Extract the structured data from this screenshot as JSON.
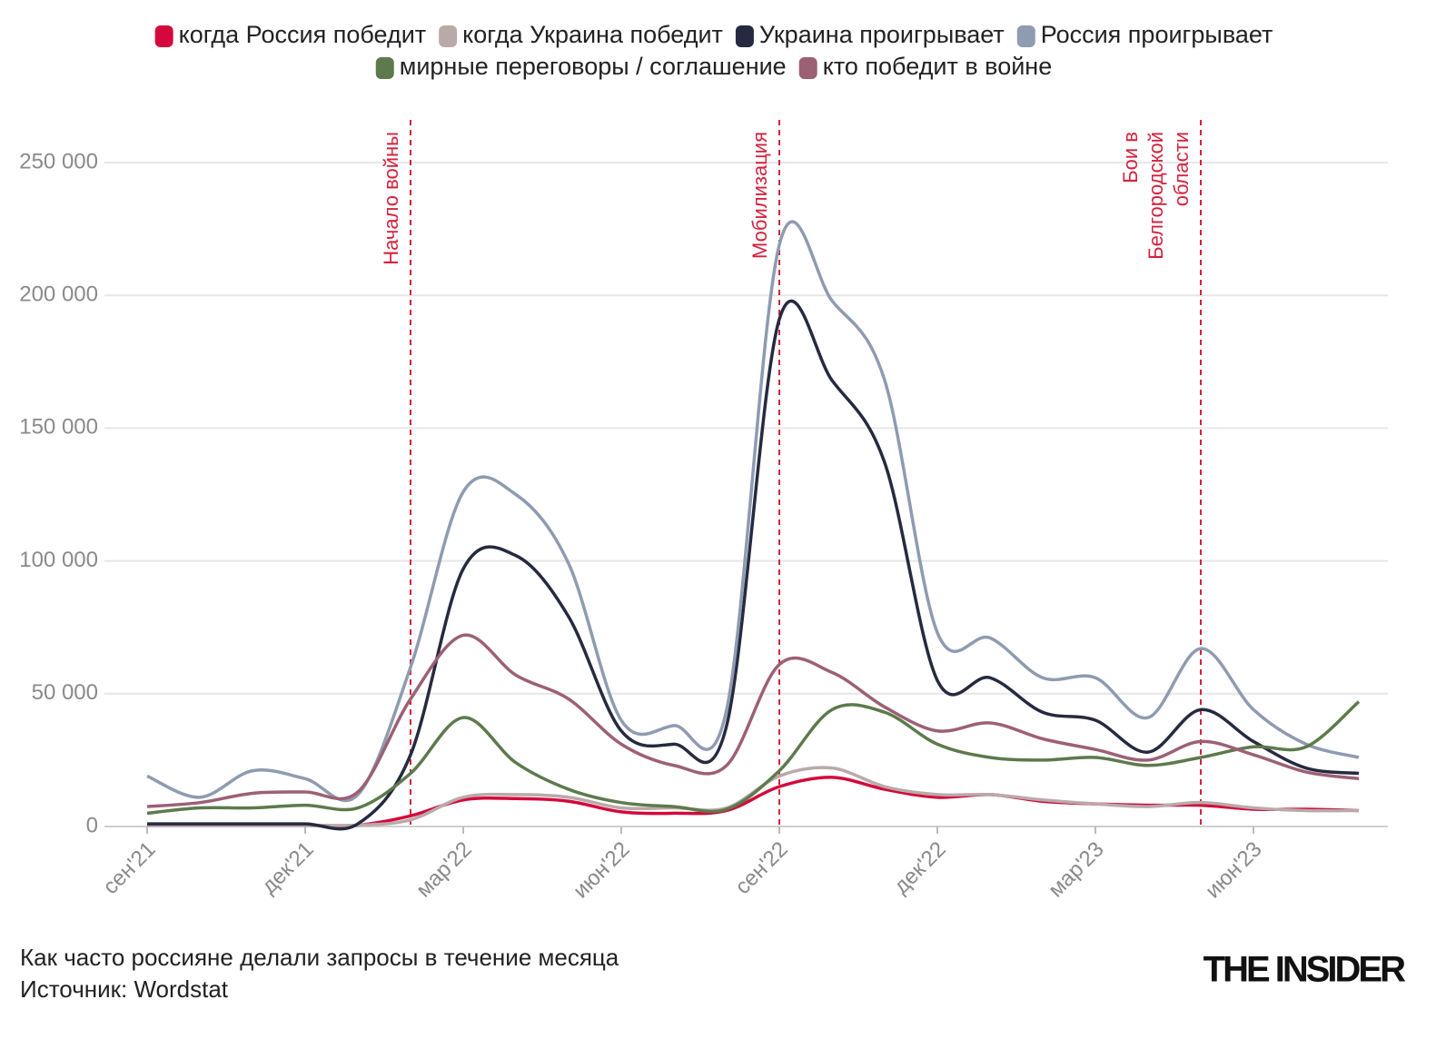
{
  "chart_data": {
    "type": "line",
    "categories": [
      "сен'21",
      null,
      null,
      "дек'21",
      null,
      null,
      "мар'22",
      null,
      null,
      "июн'22",
      null,
      null,
      "сен'22",
      null,
      null,
      "дек'22",
      null,
      null,
      "мар'23",
      null,
      null,
      "июн'23",
      null,
      null
    ],
    "series": [
      {
        "name": "когда Россия победит",
        "color": "#d4083c",
        "values": [
          500,
          500,
          500,
          500,
          500,
          4000,
          10000,
          10500,
          9500,
          5500,
          5000,
          6000,
          15000,
          18500,
          14000,
          11000,
          12000,
          9500,
          8500,
          8000,
          8000,
          6500,
          6500,
          6000
        ]
      },
      {
        "name": "когда Украина победит",
        "color": "#b9aaa9",
        "values": [
          500,
          500,
          500,
          500,
          500,
          2500,
          11000,
          12000,
          11000,
          7000,
          7000,
          7000,
          19000,
          22000,
          15000,
          12000,
          12000,
          10000,
          8500,
          7500,
          9000,
          7000,
          6000,
          6000
        ]
      },
      {
        "name": "Украина проигрывает",
        "color": "#262a40",
        "values": [
          1000,
          1000,
          1000,
          1000,
          1000,
          27000,
          97000,
          102000,
          79000,
          36000,
          31000,
          38000,
          191000,
          168000,
          137000,
          55000,
          56000,
          43000,
          40000,
          28000,
          44000,
          32000,
          22000,
          20000
        ]
      },
      {
        "name": "Россия проигрывает",
        "color": "#8e9bb0",
        "values": [
          19000,
          11000,
          21000,
          18000,
          12000,
          60000,
          126000,
          125000,
          99000,
          40000,
          38000,
          44000,
          219000,
          198000,
          168000,
          73000,
          71000,
          56000,
          56000,
          41000,
          67000,
          44000,
          31000,
          26000
        ]
      },
      {
        "name": "мирные переговоры / соглашение",
        "color": "#5d7a4c",
        "values": [
          5000,
          7000,
          7000,
          8000,
          7000,
          20000,
          41000,
          24000,
          14000,
          9000,
          7500,
          6500,
          21000,
          44000,
          43000,
          31000,
          26000,
          25000,
          26000,
          23000,
          26000,
          30000,
          30000,
          47000
        ]
      },
      {
        "name": "кто победит в войне",
        "color": "#9c6075",
        "values": [
          7500,
          9000,
          12500,
          13000,
          13000,
          48000,
          72000,
          57000,
          48000,
          31000,
          23000,
          23000,
          61000,
          58000,
          45000,
          36000,
          39000,
          33000,
          29000,
          25000,
          32000,
          27000,
          20500,
          18000
        ]
      }
    ],
    "ylim": [
      0,
      265000
    ],
    "yticks": [
      0,
      {
        "value": 50000,
        "label": "50 000"
      },
      {
        "value": 100000,
        "label": "100 000"
      },
      {
        "value": 150000,
        "label": "150 000"
      },
      {
        "value": 200000,
        "label": "200 000"
      },
      {
        "value": 250000,
        "label": "250 000"
      }
    ],
    "grid": true,
    "events": [
      {
        "x": 5,
        "lines": [
          "Начало войны"
        ]
      },
      {
        "x": 12,
        "lines": [
          "Мобилизация"
        ]
      },
      {
        "x": 20,
        "lines": [
          "Бои в",
          "Белгородской",
          "области"
        ]
      }
    ],
    "event_color": "#d4213d",
    "caption": "Как часто россияне делали запросы в течение месяца",
    "source": "Источник: Wordstat",
    "logo": "THE INSIDER"
  }
}
